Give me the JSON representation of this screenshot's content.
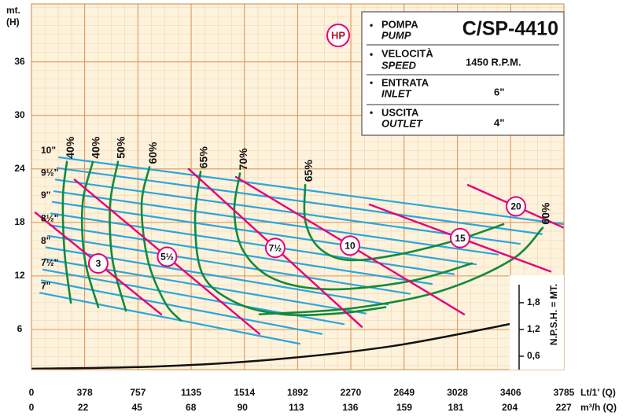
{
  "chart_data": {
    "type": "line",
    "hp_label": "HP",
    "ylabel": "mt.",
    "ylabel_unit": "(H)",
    "xlabel": "Lt/1' (Q)",
    "x2label": "m³/h (Q)",
    "xlim": [
      0,
      3785
    ],
    "xticks": [
      0,
      378,
      757,
      1135,
      1514,
      1892,
      2270,
      2649,
      3028,
      3406,
      3785
    ],
    "x2lim": [
      0,
      227.1
    ],
    "x2ticks": [
      0,
      22,
      45,
      68,
      90,
      113,
      136,
      159,
      181,
      204,
      227
    ],
    "ylim": [
      1.5,
      42.5
    ],
    "yticks": [
      6,
      12,
      18,
      24,
      30,
      36
    ],
    "y2label": "N.P.S.H. = MT.",
    "y2lim": [
      0.3,
      8.5
    ],
    "y2ticks": [
      {
        "value": 0.6,
        "label": "0,6"
      },
      {
        "value": 1.2,
        "label": "1,2"
      },
      {
        "value": 1.8,
        "label": "1,8"
      }
    ],
    "grid": true,
    "info": [
      {
        "label": "POMPA",
        "label_en": "PUMP",
        "value": "C/SP-4410"
      },
      {
        "label": "VELOCITÀ",
        "label_en": "SPEED",
        "value": "1450 R.P.M."
      },
      {
        "label": "ENTRATA",
        "label_en": "INLET",
        "value": "6\""
      },
      {
        "label": "USCITA",
        "label_en": "OUTLET",
        "value": "4\""
      }
    ],
    "impeller_color": "#2aa6dc",
    "impellers": [
      {
        "name": "10\"",
        "x": [
          196,
          3785
        ],
        "values": [
          25.3,
          17.8
        ]
      },
      {
        "x": [
          184,
          3628
        ],
        "values": [
          24.1,
          16.7
        ]
      },
      {
        "name": "9½\"",
        "x": [
          173,
          3472
        ],
        "values": [
          22.8,
          15.6
        ]
      },
      {
        "x": [
          162,
          3315
        ],
        "values": [
          21.5,
          14.4
        ]
      },
      {
        "name": "9\"",
        "x": [
          151,
          3159
        ],
        "values": [
          20.3,
          13.3
        ]
      },
      {
        "x": [
          140,
          3002
        ],
        "values": [
          19.0,
          12.2
        ]
      },
      {
        "name": "8½\"",
        "x": [
          129,
          2846
        ],
        "values": [
          17.7,
          11.1
        ]
      },
      {
        "x": [
          117,
          2689
        ],
        "values": [
          16.5,
          10.0
        ]
      },
      {
        "name": "8\"",
        "x": [
          106,
          2533
        ],
        "values": [
          15.2,
          8.8
        ]
      },
      {
        "x": [
          95,
          2376
        ],
        "values": [
          13.9,
          7.8
        ]
      },
      {
        "name": "7½\"",
        "x": [
          84,
          2220
        ],
        "values": [
          12.7,
          6.6
        ]
      },
      {
        "x": [
          73,
          2063
        ],
        "values": [
          11.5,
          5.5
        ]
      },
      {
        "name": "7\"",
        "x": [
          62,
          1907
        ],
        "values": [
          10.1,
          4.4
        ]
      }
    ],
    "efficiency_color": "#118a3c",
    "efficiency": [
      {
        "name": "40%",
        "x": [
          252,
          224,
          235,
          280
        ],
        "values": [
          24.8,
          20.9,
          14.7,
          9.0
        ]
      },
      {
        "name": "40%",
        "x": [
          436,
          363,
          380,
          475
        ],
        "values": [
          24.8,
          20.0,
          13.8,
          8.5
        ]
      },
      {
        "name": "50%",
        "x": [
          615,
          559,
          576,
          671
        ],
        "values": [
          24.8,
          20.0,
          13.8,
          8.1
        ]
      },
      {
        "name": "60%",
        "x": [
          839,
          783,
          827,
          950,
          1062
        ],
        "values": [
          24.2,
          20.0,
          13.8,
          9.0,
          7.0
        ]
      },
      {
        "name": "65%",
        "x": [
          1202,
          1163,
          1219,
          1454,
          1789,
          2181,
          2516
        ],
        "values": [
          23.7,
          18.2,
          12.1,
          9.0,
          7.7,
          7.8,
          8.5
        ]
      },
      {
        "name": "70%",
        "x": [
          1482,
          1442,
          1510,
          1733,
          2125,
          2684,
          3131
        ],
        "values": [
          23.5,
          19.1,
          14.7,
          11.6,
          10.5,
          11.4,
          13.4
        ]
      },
      {
        "name": "65%",
        "x": [
          1946,
          1946,
          2041,
          2236,
          2572,
          3019,
          3355
        ],
        "values": [
          22.2,
          18.2,
          15.2,
          13.8,
          14.3,
          16.0,
          17.8
        ]
      },
      {
        "name": "60%",
        "x": [
          1621,
          2292,
          2907,
          3411,
          3634
        ],
        "values": [
          7.7,
          8.4,
          10.3,
          13.8,
          17.4
        ]
      }
    ],
    "power_color": "#e4007c",
    "power": [
      {
        "name": "3",
        "x": [
          28,
          922
        ],
        "values": [
          19.1,
          7.7
        ]
      },
      {
        "name": "5½",
        "x": [
          307,
          1621
        ],
        "values": [
          22.8,
          5.5
        ]
      },
      {
        "name": "7½",
        "x": [
          1118,
          2348
        ],
        "values": [
          24.0,
          6.3
        ]
      },
      {
        "name": "10",
        "x": [
          1454,
          3075
        ],
        "values": [
          23.1,
          7.7
        ]
      },
      {
        "name": "15",
        "x": [
          2404,
          3690
        ],
        "values": [
          20.0,
          12.5
        ]
      },
      {
        "name": "20",
        "x": [
          3103,
          3785
        ],
        "values": [
          22.2,
          17.4
        ]
      }
    ],
    "npsh": {
      "color": "#111111",
      "axis": "y2",
      "x": [
        0,
        895,
        1733,
        2572,
        3399
      ],
      "values": [
        0.32,
        0.37,
        0.53,
        0.83,
        1.32
      ]
    }
  }
}
